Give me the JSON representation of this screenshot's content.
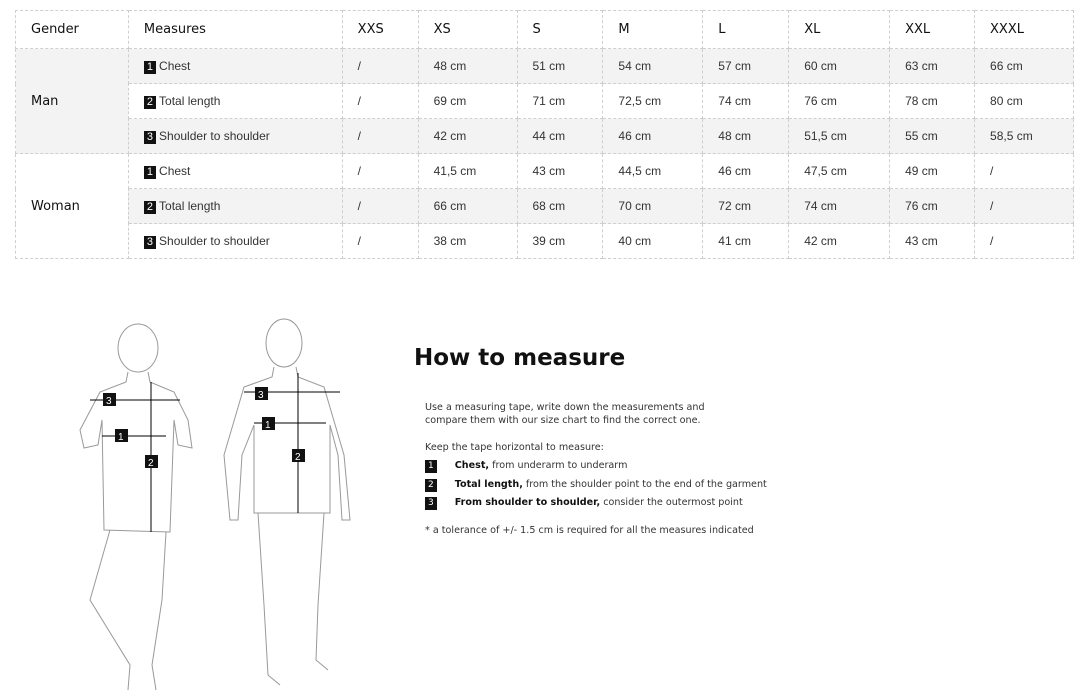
{
  "table": {
    "headers": [
      "Gender",
      "Measures",
      "XXS",
      "XS",
      "S",
      "M",
      "L",
      "XL",
      "XXL",
      "XXXL"
    ],
    "groups": [
      {
        "gender": "Man",
        "rows": [
          {
            "num": "1",
            "measure": "Chest",
            "values": [
              "/",
              "48 cm",
              "51 cm",
              "54 cm",
              "57 cm",
              "60 cm",
              "63 cm",
              "66 cm"
            ]
          },
          {
            "num": "2",
            "measure": "Total length",
            "values": [
              "/",
              "69 cm",
              "71 cm",
              "72,5 cm",
              "74 cm",
              "76 cm",
              "78 cm",
              "80 cm"
            ]
          },
          {
            "num": "3",
            "measure": "Shoulder to shoulder",
            "values": [
              "/",
              "42 cm",
              "44 cm",
              "46 cm",
              "48 cm",
              "51,5 cm",
              "55 cm",
              "58,5 cm"
            ]
          }
        ]
      },
      {
        "gender": "Woman",
        "rows": [
          {
            "num": "1",
            "measure": "Chest",
            "values": [
              "/",
              "41,5 cm",
              "43 cm",
              "44,5 cm",
              "46 cm",
              "47,5 cm",
              "49 cm",
              "/"
            ]
          },
          {
            "num": "2",
            "measure": "Total length",
            "values": [
              "/",
              "66 cm",
              "68 cm",
              "70 cm",
              "72 cm",
              "74 cm",
              "76 cm",
              "/"
            ]
          },
          {
            "num": "3",
            "measure": "Shoulder to shoulder",
            "values": [
              "/",
              "38 cm",
              "39 cm",
              "40 cm",
              "41 cm",
              "42 cm",
              "43 cm",
              "/"
            ]
          }
        ]
      }
    ]
  },
  "guide": {
    "title": "How to measure",
    "intro1": "Use a measuring tape, write down the measurements and",
    "intro2": "compare them with our size chart to find the correct one.",
    "keep": "Keep the tape horizontal to measure:",
    "items": [
      {
        "num": "1",
        "bold": "Chest,",
        "text": " from underarm to underarm"
      },
      {
        "num": "2",
        "bold": "Total length,",
        "text": " from the shoulder point to the end of the garment"
      },
      {
        "num": "3",
        "bold": "From shoulder to shoulder,",
        "text": " consider the outermost point"
      }
    ],
    "note": "* a tolerance of +/- 1.5 cm is required for all the measures indicated"
  },
  "figures": {
    "labels": [
      "1",
      "2",
      "3"
    ]
  }
}
